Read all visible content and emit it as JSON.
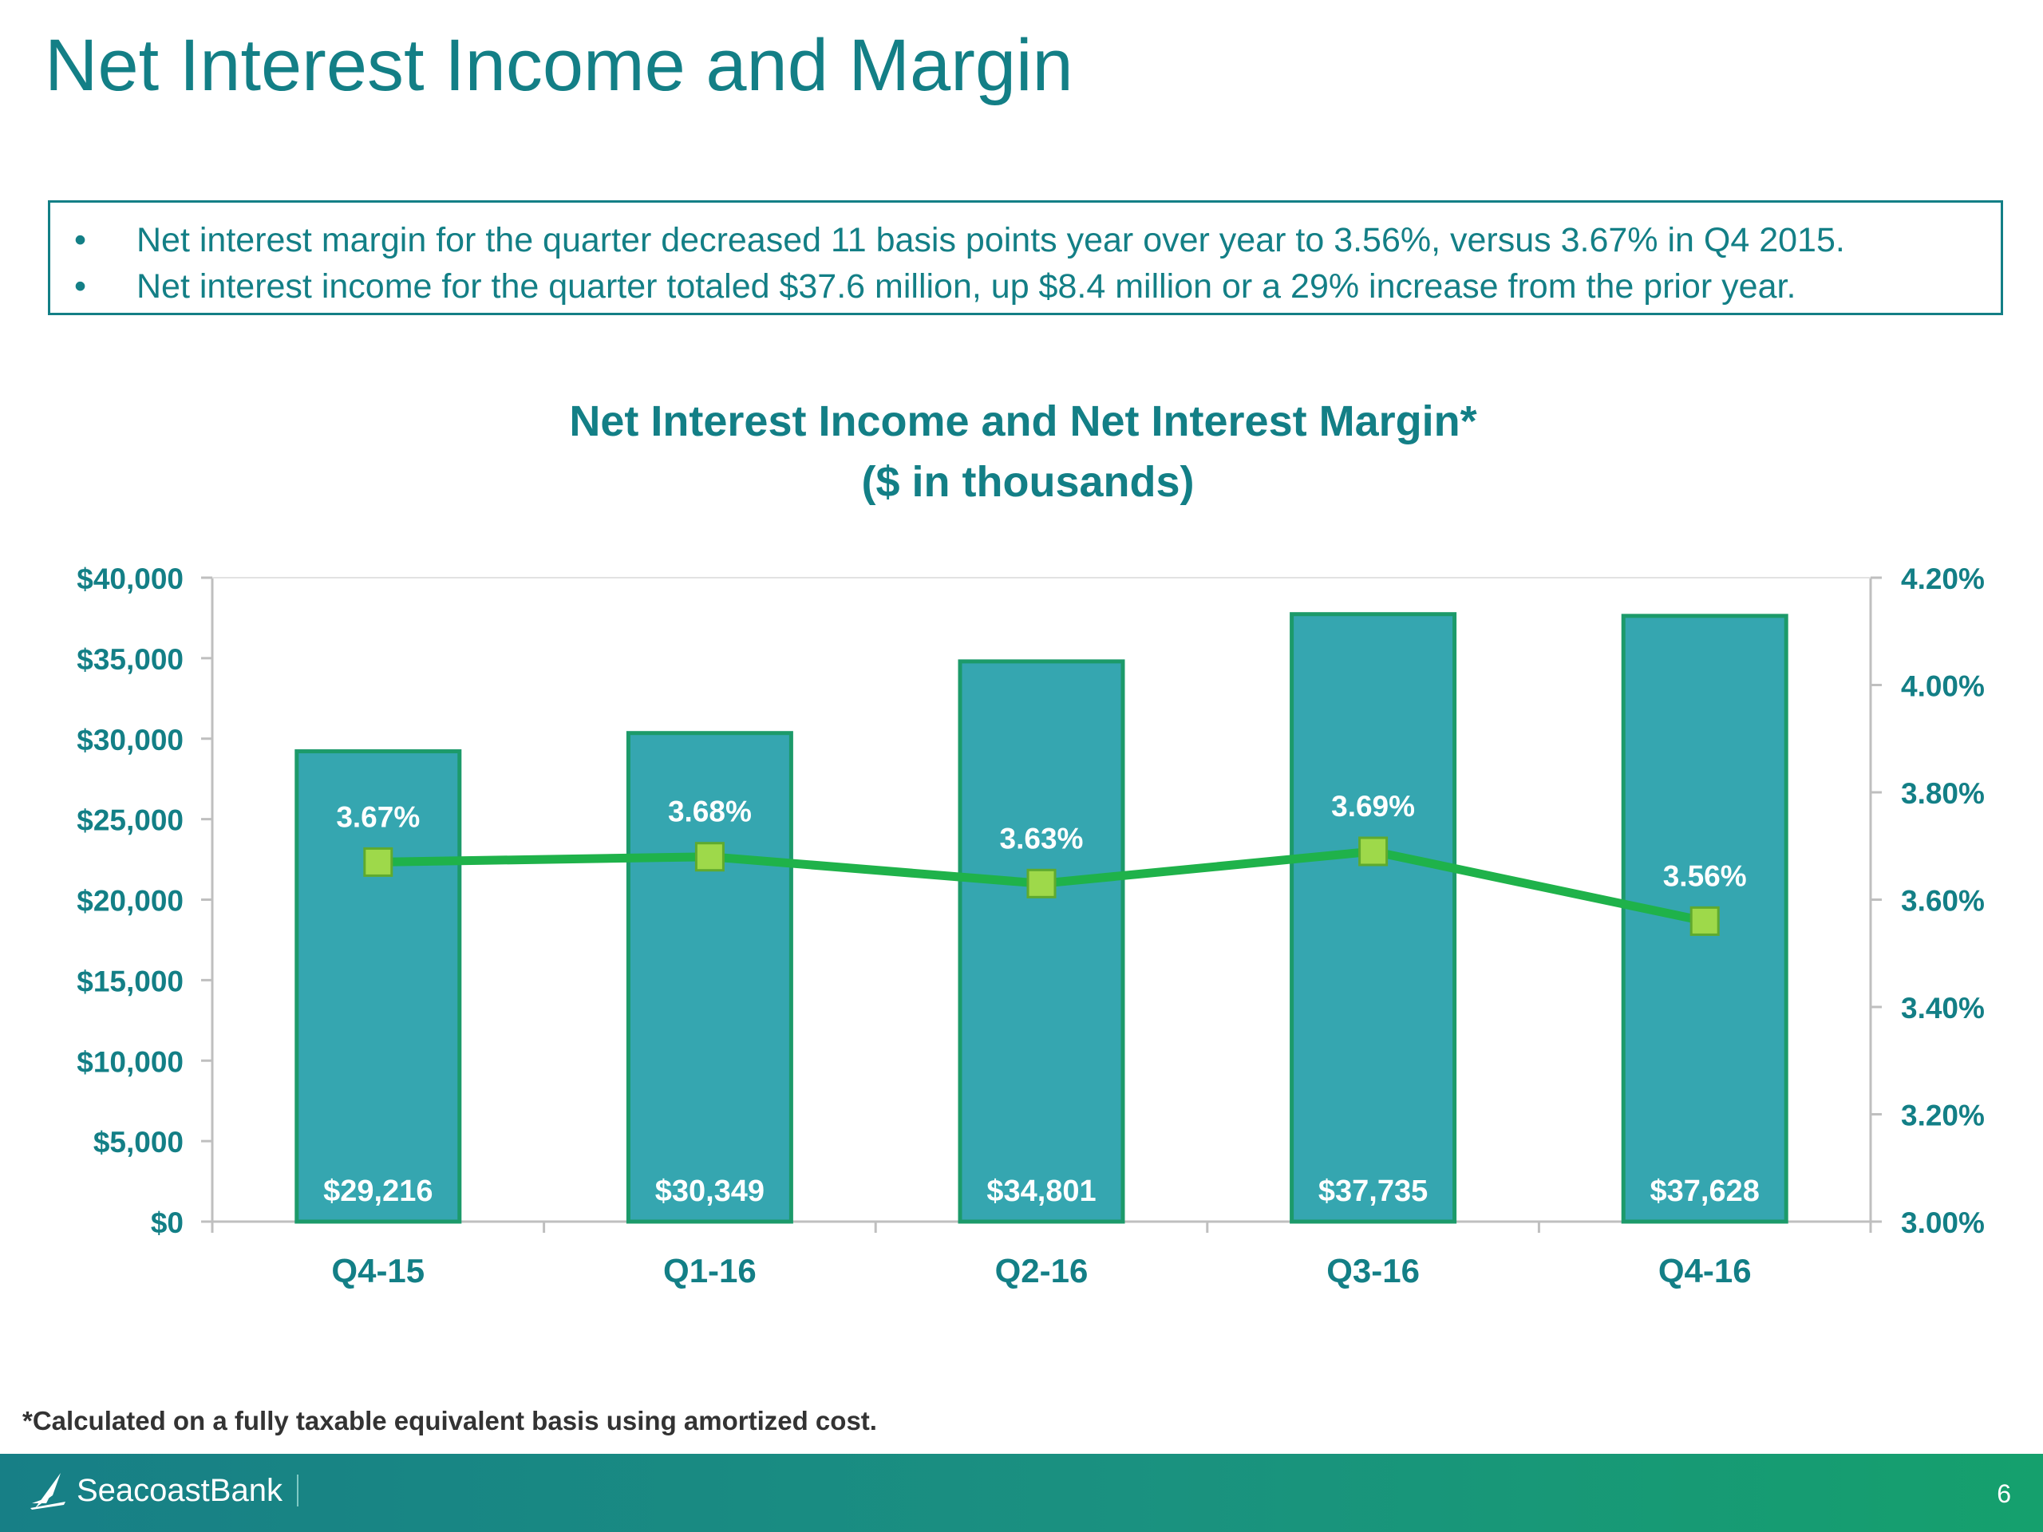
{
  "slide": {
    "title": "Net Interest Income and Margin",
    "bullets": [
      "Net interest margin for the quarter decreased 11 basis points year over year to 3.56%, versus 3.67% in Q4 2015.",
      "Net interest income for the quarter totaled $37.6 million, up $8.4 million or a 29% increase from the prior year."
    ],
    "bullet_symbol": "•",
    "footnote": "*Calculated on a fully taxable equivalent basis using amortized cost.",
    "brand": "SeacoastBank",
    "page_number": "6"
  },
  "colors": {
    "title": "#137f86",
    "bar_fill": "#35a6b0",
    "bar_border": "#1c9a6a",
    "line": "#1fb24a",
    "marker": "#9ed94a",
    "axis_text": "#137f86",
    "data_label": "#ffffff"
  },
  "chart_data": {
    "type": "bar",
    "title": "Net Interest Income and Net Interest Margin*",
    "subtitle": "($ in thousands)",
    "categories": [
      "Q4-15",
      "Q1-16",
      "Q2-16",
      "Q3-16",
      "Q4-16"
    ],
    "series": [
      {
        "type": "bar",
        "axis": "left",
        "values": [
          29216,
          30349,
          34801,
          37735,
          37628
        ],
        "labels": [
          "$29,216",
          "$30,349",
          "$34,801",
          "$37,735",
          "$37,628"
        ]
      },
      {
        "type": "line",
        "axis": "right",
        "values": [
          3.67,
          3.68,
          3.63,
          3.69,
          3.56
        ],
        "labels": [
          "3.67%",
          "3.68%",
          "3.63%",
          "3.69%",
          "3.56%"
        ]
      }
    ],
    "y_left": {
      "range": [
        0,
        40000
      ],
      "ticks": [
        0,
        5000,
        10000,
        15000,
        20000,
        25000,
        30000,
        35000,
        40000
      ],
      "tick_labels": [
        "$0",
        "$5,000",
        "$10,000",
        "$15,000",
        "$20,000",
        "$25,000",
        "$30,000",
        "$35,000",
        "$40,000"
      ]
    },
    "y_right": {
      "range": [
        3.0,
        4.2
      ],
      "ticks": [
        3.0,
        3.2,
        3.4,
        3.6,
        3.8,
        4.0,
        4.2
      ],
      "tick_labels": [
        "3.00%",
        "3.20%",
        "3.40%",
        "3.60%",
        "3.80%",
        "4.00%",
        "4.20%"
      ]
    },
    "grid": false,
    "legend": "none"
  }
}
